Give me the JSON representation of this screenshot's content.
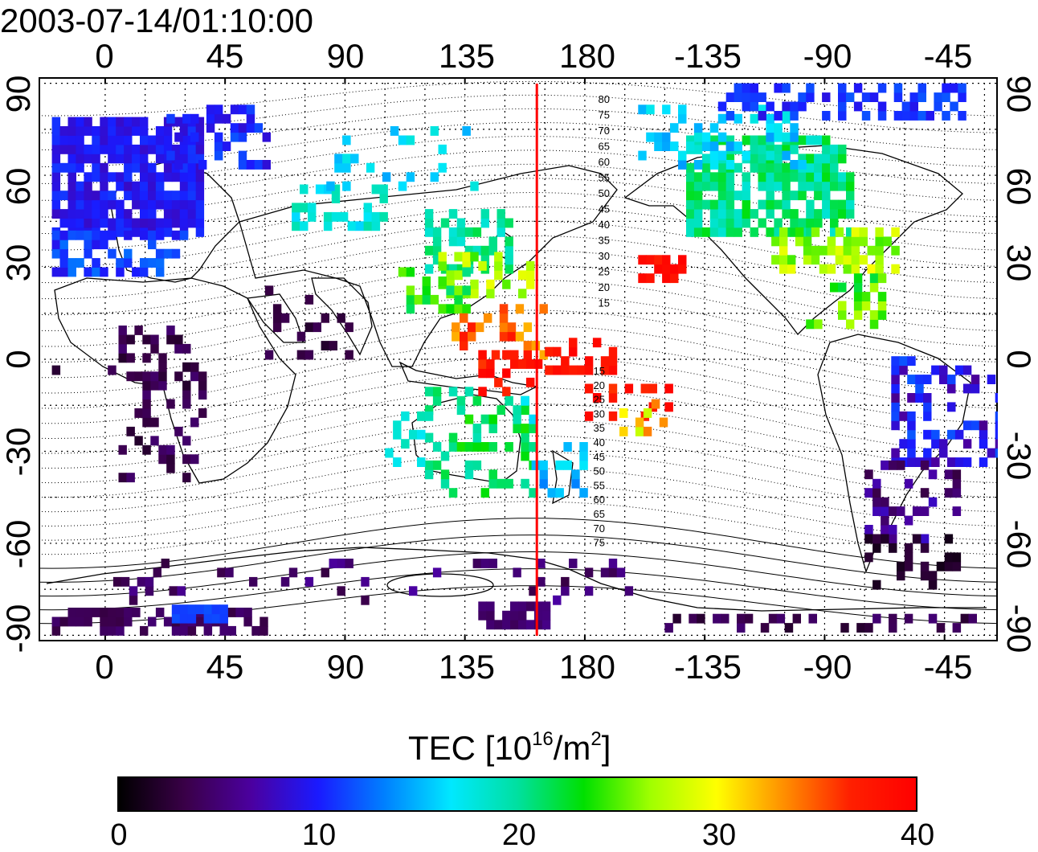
{
  "timestamp": "2003-07-14/01:10:00",
  "map": {
    "top_longitude_labels": [
      "0",
      "45",
      "90",
      "135",
      "180",
      "-135",
      "-90",
      "-45"
    ],
    "bottom_longitude_labels": [
      "0",
      "45",
      "90",
      "135",
      "180",
      "-135",
      "-90",
      "-45"
    ],
    "latitude_labels_left": [
      "90",
      "60",
      "30",
      "0",
      "-30",
      "-60",
      "-90"
    ],
    "latitude_labels_right": [
      "90",
      "60",
      "30",
      "0",
      "-30",
      "-60",
      "-90"
    ],
    "lon_range": [
      -25,
      335
    ],
    "lat_range": [
      -92,
      92
    ],
    "grid": true,
    "terminator_longitude": 162,
    "terminator_color": "#ff0000",
    "contour_labels_north": [
      "80",
      "75",
      "70",
      "65",
      "60",
      "55",
      "50",
      "45",
      "40",
      "35",
      "30",
      "25",
      "20",
      "15"
    ],
    "contour_labels_south": [
      "15",
      "20",
      "25",
      "30",
      "35",
      "40",
      "45",
      "50",
      "55",
      "60",
      "65",
      "70",
      "75"
    ]
  },
  "colorbar": {
    "title": "TEC  [10",
    "title_exp": "16",
    "title_unit": "/m",
    "title_unit_exp": "2",
    "title_close": "]",
    "tick_labels": [
      "0",
      "10",
      "20",
      "30",
      "40"
    ],
    "range": [
      0,
      40
    ],
    "colors": [
      "#000000",
      "#3a0048",
      "#4b00a0",
      "#1a1aff",
      "#0080ff",
      "#00e8ff",
      "#00e0a0",
      "#00e000",
      "#a0ff00",
      "#ffff00",
      "#ff9000",
      "#ff2000",
      "#ff0000"
    ]
  }
}
